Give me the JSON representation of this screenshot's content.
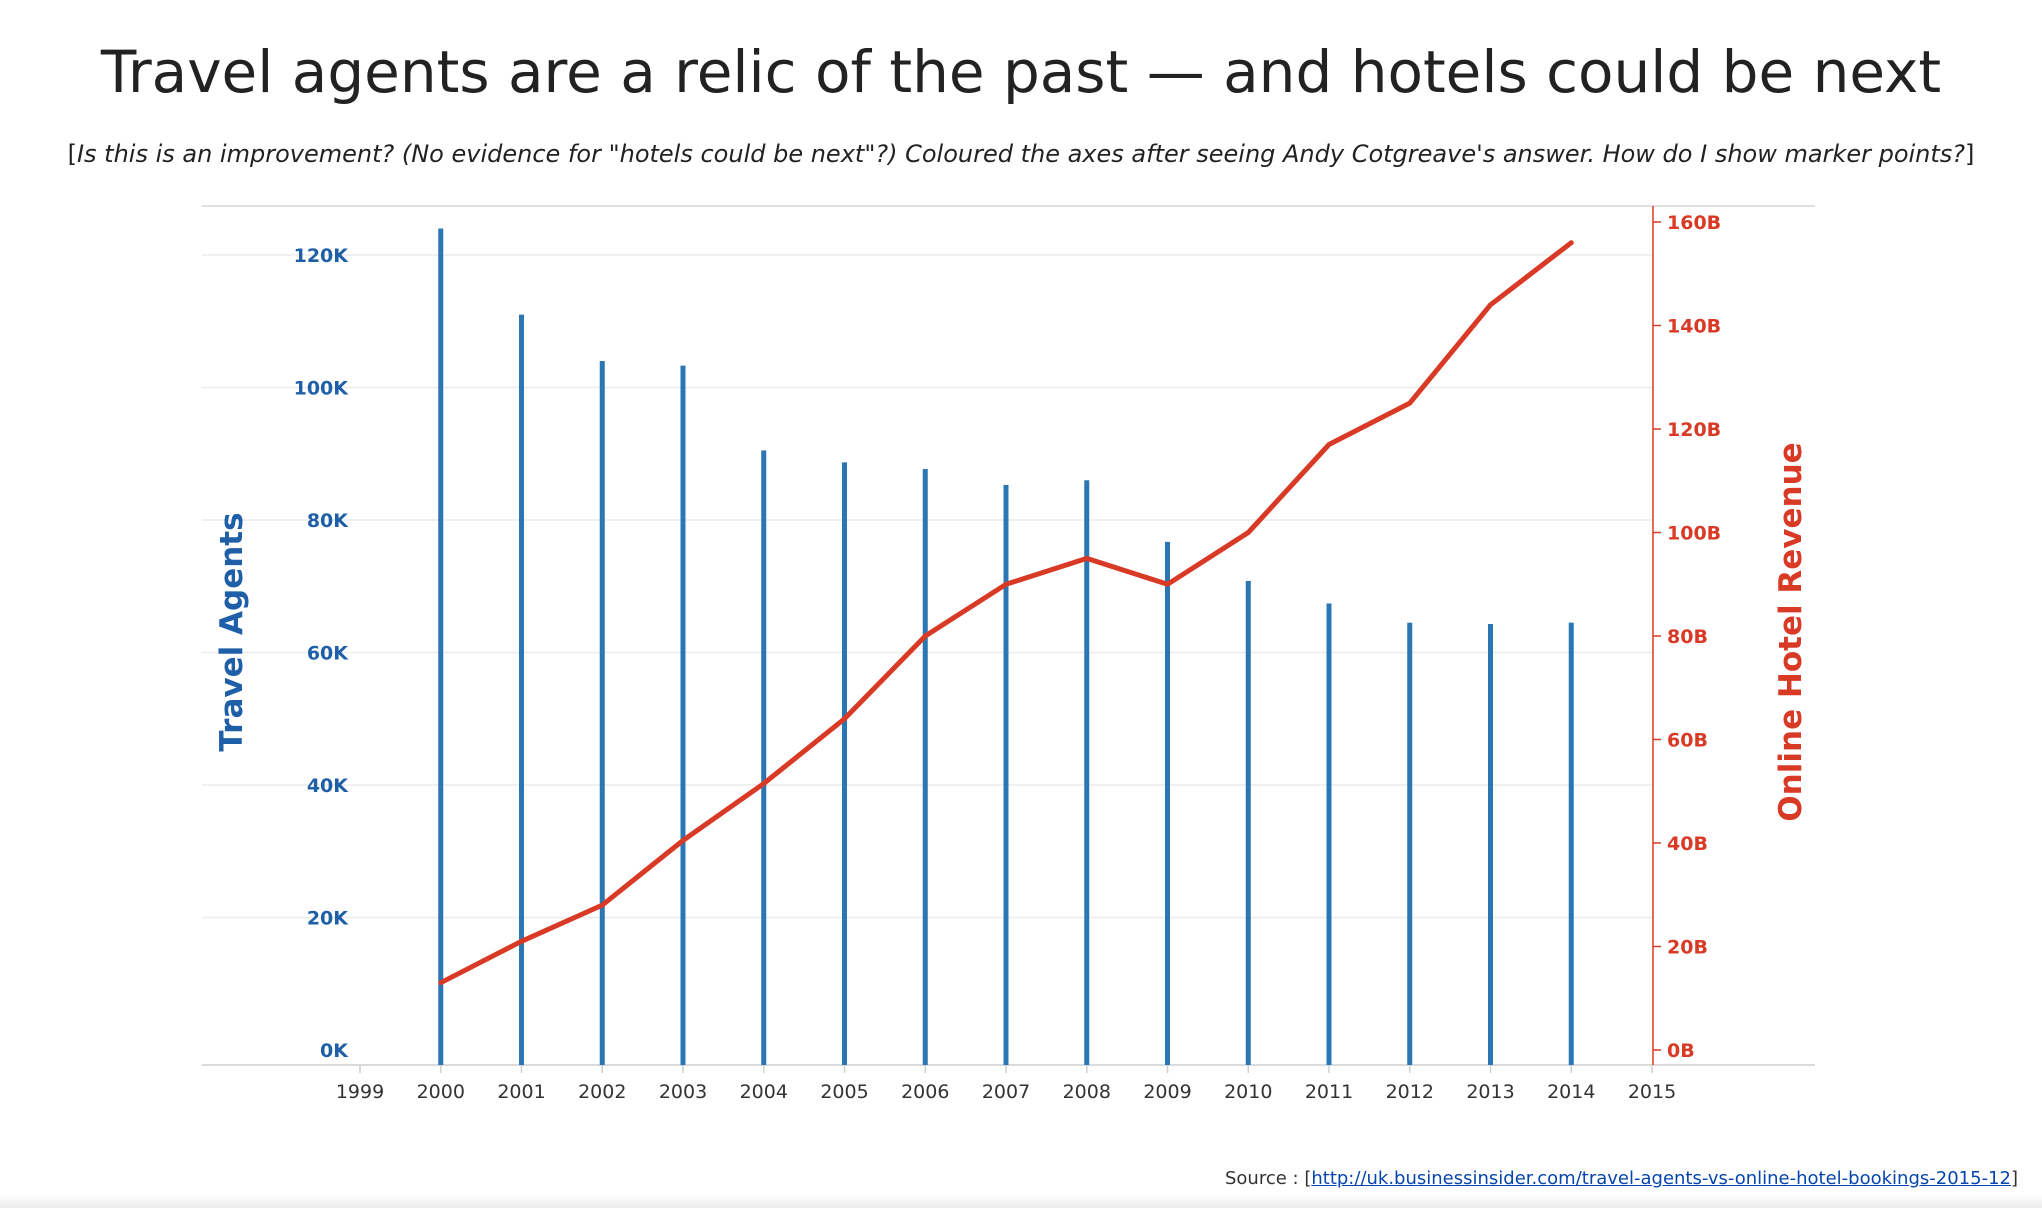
{
  "title": "Travel agents are a relic of the past — and hotels could be next",
  "subtitle": {
    "open": "[",
    "text": "Is this is an improvement? (No evidence for \"hotels could be next\"?) Coloured the axes after seeing Andy Cotgreave's answer. How do I show marker points?",
    "close": "]"
  },
  "source": {
    "label": "Source : ",
    "open": "[",
    "link": "http://uk.businessinsider.com/travel-agents-vs-online-hotel-bookings-2015-12",
    "close": "]"
  },
  "colors": {
    "agents": "#1f5fa8",
    "agents_bar": "#2a77b4",
    "revenue": "#d93a26"
  },
  "chart_data": {
    "type": "bar",
    "title": "Travel agents are a relic of the past — and hotels could be next",
    "x": [
      2000,
      2001,
      2002,
      2003,
      2004,
      2005,
      2006,
      2007,
      2008,
      2009,
      2010,
      2011,
      2012,
      2013,
      2014
    ],
    "xlim": [
      1999,
      2015
    ],
    "xticks": [
      "1999",
      "2000",
      "2001",
      "2002",
      "2003",
      "2004",
      "2005",
      "2006",
      "2007",
      "2008",
      "2009",
      "2010",
      "2011",
      "2012",
      "2013",
      "2014",
      "2015"
    ],
    "series": [
      {
        "name": "Travel Agents",
        "type": "bar",
        "axis": "left",
        "values": [
          124000,
          111000,
          104000,
          103300,
          90500,
          88700,
          87700,
          85300,
          86000,
          76700,
          70800,
          67400,
          64500,
          64300,
          64500
        ]
      },
      {
        "name": "Online Hotel Revenue",
        "type": "line",
        "axis": "right",
        "values": [
          13,
          21,
          28,
          40.5,
          51.5,
          64,
          80,
          90,
          95,
          90,
          100,
          117,
          125,
          144,
          156
        ]
      }
    ],
    "left_axis": {
      "label": "Travel Agents",
      "ylim": [
        0,
        126000
      ],
      "ticks": [
        0,
        20000,
        40000,
        60000,
        80000,
        100000,
        120000
      ],
      "tick_labels": [
        "0K",
        "20K",
        "40K",
        "60K",
        "80K",
        "100K",
        "120K"
      ]
    },
    "right_axis": {
      "label": "Online Hotel Revenue",
      "ylim": [
        0,
        160
      ],
      "ticks": [
        0,
        20,
        40,
        60,
        80,
        100,
        120,
        140,
        160
      ],
      "tick_labels": [
        "0B",
        "20B",
        "40B",
        "60B",
        "80B",
        "100B",
        "120B",
        "140B",
        "160B"
      ]
    },
    "grid": true,
    "legend": "none"
  }
}
